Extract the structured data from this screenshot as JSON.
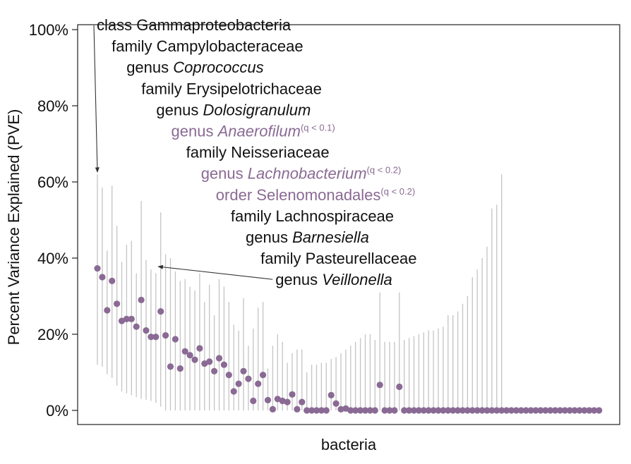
{
  "chart_data": {
    "type": "scatter",
    "xlabel": "bacteria",
    "ylabel": "Percent Variance Explained (PVE)",
    "ylim": [
      0,
      1
    ],
    "yticks": [
      {
        "value": 0,
        "label": "0%"
      },
      {
        "value": 0.2,
        "label": "20%"
      },
      {
        "value": 0.4,
        "label": "40%"
      },
      {
        "value": 0.6,
        "label": "60%"
      },
      {
        "value": 0.8,
        "label": "80%"
      },
      {
        "value": 1.0,
        "label": "100%"
      }
    ],
    "grid": false,
    "colors": {
      "point": "#8a6a94",
      "interval": "#c4c4c4",
      "highlight_text": "#8a6a94",
      "text": "#111111"
    },
    "points": [
      {
        "pve": 0.373,
        "lo": 0.12,
        "hi": 0.62
      },
      {
        "pve": 0.35,
        "lo": 0.115,
        "hi": 0.585
      },
      {
        "pve": 0.263,
        "lo": 0.095,
        "hi": 0.42
      },
      {
        "pve": 0.34,
        "lo": 0.085,
        "hi": 0.59
      },
      {
        "pve": 0.28,
        "lo": 0.065,
        "hi": 0.485
      },
      {
        "pve": 0.235,
        "lo": 0.05,
        "hi": 0.39
      },
      {
        "pve": 0.24,
        "lo": 0.045,
        "hi": 0.435
      },
      {
        "pve": 0.24,
        "lo": 0.04,
        "hi": 0.445
      },
      {
        "pve": 0.22,
        "lo": 0.035,
        "hi": 0.36
      },
      {
        "pve": 0.29,
        "lo": 0.03,
        "hi": 0.55
      },
      {
        "pve": 0.21,
        "lo": 0.028,
        "hi": 0.395
      },
      {
        "pve": 0.193,
        "lo": 0.025,
        "hi": 0.37
      },
      {
        "pve": 0.193,
        "lo": 0.02,
        "hi": 0.36
      },
      {
        "pve": 0.26,
        "lo": 0.01,
        "hi": 0.52
      },
      {
        "pve": 0.197,
        "lo": 0,
        "hi": 0.41
      },
      {
        "pve": 0.115,
        "lo": 0,
        "hi": 0.4
      },
      {
        "pve": 0.187,
        "lo": 0,
        "hi": 0.365
      },
      {
        "pve": 0.11,
        "lo": 0,
        "hi": 0.34
      },
      {
        "pve": 0.155,
        "lo": 0,
        "hi": 0.345
      },
      {
        "pve": 0.145,
        "lo": 0,
        "hi": 0.325
      },
      {
        "pve": 0.133,
        "lo": 0,
        "hi": 0.315
      },
      {
        "pve": 0.163,
        "lo": 0,
        "hi": 0.36
      },
      {
        "pve": 0.123,
        "lo": 0,
        "hi": 0.285
      },
      {
        "pve": 0.128,
        "lo": 0,
        "hi": 0.33
      },
      {
        "pve": 0.103,
        "lo": 0,
        "hi": 0.25
      },
      {
        "pve": 0.137,
        "lo": 0,
        "hi": 0.345
      },
      {
        "pve": 0.12,
        "lo": 0,
        "hi": 0.325
      },
      {
        "pve": 0.093,
        "lo": 0,
        "hi": 0.285
      },
      {
        "pve": 0.05,
        "lo": 0,
        "hi": 0.225
      },
      {
        "pve": 0.07,
        "lo": 0,
        "hi": 0.21
      },
      {
        "pve": 0.103,
        "lo": 0,
        "hi": 0.295
      },
      {
        "pve": 0.083,
        "lo": 0,
        "hi": 0.17
      },
      {
        "pve": 0.025,
        "lo": 0,
        "hi": 0.215
      },
      {
        "pve": 0.07,
        "lo": 0,
        "hi": 0.27
      },
      {
        "pve": 0.093,
        "lo": 0,
        "hi": 0.285
      },
      {
        "pve": 0.027,
        "lo": 0,
        "hi": 0.11
      },
      {
        "pve": 0.003,
        "lo": 0,
        "hi": 0.17
      },
      {
        "pve": 0.03,
        "lo": 0,
        "hi": 0.2
      },
      {
        "pve": 0.025,
        "lo": 0,
        "hi": 0.18
      },
      {
        "pve": 0.022,
        "lo": 0,
        "hi": 0.125
      },
      {
        "pve": 0.042,
        "lo": 0,
        "hi": 0.15
      },
      {
        "pve": 0.003,
        "lo": 0,
        "hi": 0.16
      },
      {
        "pve": 0.022,
        "lo": 0,
        "hi": 0.16
      },
      {
        "pve": 0,
        "lo": 0,
        "hi": 0.1
      },
      {
        "pve": 0,
        "lo": 0,
        "hi": 0.12
      },
      {
        "pve": 0,
        "lo": 0,
        "hi": 0.12
      },
      {
        "pve": 0,
        "lo": 0,
        "hi": 0.125
      },
      {
        "pve": 0,
        "lo": 0,
        "hi": 0.125
      },
      {
        "pve": 0.04,
        "lo": 0,
        "hi": 0.135
      },
      {
        "pve": 0.018,
        "lo": 0,
        "hi": 0.14
      },
      {
        "pve": 0.003,
        "lo": 0,
        "hi": 0.15
      },
      {
        "pve": 0.005,
        "lo": 0,
        "hi": 0.16
      },
      {
        "pve": 0,
        "lo": 0,
        "hi": 0.17
      },
      {
        "pve": 0,
        "lo": 0,
        "hi": 0.18
      },
      {
        "pve": 0,
        "lo": 0,
        "hi": 0.19
      },
      {
        "pve": 0,
        "lo": 0,
        "hi": 0.2
      },
      {
        "pve": 0,
        "lo": 0,
        "hi": 0.2
      },
      {
        "pve": 0,
        "lo": 0,
        "hi": 0.185
      },
      {
        "pve": 0.067,
        "lo": 0,
        "hi": 0.31
      },
      {
        "pve": 0,
        "lo": 0,
        "hi": 0.18
      },
      {
        "pve": 0,
        "lo": 0,
        "hi": 0.18
      },
      {
        "pve": 0,
        "lo": 0,
        "hi": 0.18
      },
      {
        "pve": 0.062,
        "lo": 0,
        "hi": 0.31
      },
      {
        "pve": 0,
        "lo": 0,
        "hi": 0.185
      },
      {
        "pve": 0,
        "lo": 0,
        "hi": 0.19
      },
      {
        "pve": 0,
        "lo": 0,
        "hi": 0.195
      },
      {
        "pve": 0,
        "lo": 0,
        "hi": 0.2
      },
      {
        "pve": 0,
        "lo": 0,
        "hi": 0.205
      },
      {
        "pve": 0,
        "lo": 0,
        "hi": 0.21
      },
      {
        "pve": 0,
        "lo": 0,
        "hi": 0.21
      },
      {
        "pve": 0,
        "lo": 0,
        "hi": 0.215
      },
      {
        "pve": 0,
        "lo": 0,
        "hi": 0.22
      },
      {
        "pve": 0,
        "lo": 0,
        "hi": 0.25
      },
      {
        "pve": 0,
        "lo": 0,
        "hi": 0.25
      },
      {
        "pve": 0,
        "lo": 0,
        "hi": 0.26
      },
      {
        "pve": 0,
        "lo": 0,
        "hi": 0.28
      },
      {
        "pve": 0,
        "lo": 0,
        "hi": 0.3
      },
      {
        "pve": 0,
        "lo": 0,
        "hi": 0.35
      },
      {
        "pve": 0,
        "lo": 0,
        "hi": 0.37
      },
      {
        "pve": 0,
        "lo": 0,
        "hi": 0.4
      },
      {
        "pve": 0,
        "lo": 0,
        "hi": 0.43
      },
      {
        "pve": 0,
        "lo": 0,
        "hi": 0.53
      },
      {
        "pve": 0,
        "lo": 0,
        "hi": 0.54
      },
      {
        "pve": 0,
        "lo": 0,
        "hi": 0.62
      },
      {
        "pve": 0
      },
      {
        "pve": 0
      },
      {
        "pve": 0
      },
      {
        "pve": 0
      },
      {
        "pve": 0
      },
      {
        "pve": 0
      },
      {
        "pve": 0
      },
      {
        "pve": 0
      },
      {
        "pve": 0
      },
      {
        "pve": 0
      },
      {
        "pve": 0
      },
      {
        "pve": 0
      },
      {
        "pve": 0
      },
      {
        "pve": 0
      },
      {
        "pve": 0
      },
      {
        "pve": 0
      },
      {
        "pve": 0
      },
      {
        "pve": 0
      },
      {
        "pve": 0
      },
      {
        "pve": 0
      }
    ],
    "annotations": [
      {
        "rank": "class",
        "name": "Gammaproteobacteria",
        "italic": false,
        "highlight": false,
        "q": ""
      },
      {
        "rank": "family",
        "name": "Campylobacteraceae",
        "italic": false,
        "highlight": false,
        "q": ""
      },
      {
        "rank": "genus",
        "name": "Coprococcus",
        "italic": true,
        "highlight": false,
        "q": ""
      },
      {
        "rank": "family",
        "name": "Erysipelotrichaceae",
        "italic": false,
        "highlight": false,
        "q": ""
      },
      {
        "rank": "genus",
        "name": "Dolosigranulum",
        "italic": true,
        "highlight": false,
        "q": ""
      },
      {
        "rank": "genus",
        "name": "Anaerofilum",
        "italic": true,
        "highlight": true,
        "q": "(q < 0.1)"
      },
      {
        "rank": "family",
        "name": "Neisseriaceae",
        "italic": false,
        "highlight": false,
        "q": ""
      },
      {
        "rank": "genus",
        "name": "Lachnobacterium",
        "italic": true,
        "highlight": true,
        "q": "(q < 0.2)"
      },
      {
        "rank": "order",
        "name": "Selenomonadales",
        "italic": false,
        "highlight": true,
        "q": "(q < 0.2)"
      },
      {
        "rank": "family",
        "name": "Lachnospiraceae",
        "italic": false,
        "highlight": false,
        "q": ""
      },
      {
        "rank": "genus",
        "name": "Barnesiella",
        "italic": true,
        "highlight": false,
        "q": ""
      },
      {
        "rank": "family",
        "name": "Pasteurellaceae",
        "italic": false,
        "highlight": false,
        "q": ""
      },
      {
        "rank": "genus",
        "name": "Veillonella",
        "italic": true,
        "highlight": false,
        "q": ""
      }
    ],
    "arrows": [
      {
        "from_annotation": 0,
        "to_point": 0
      },
      {
        "from_annotation": 12,
        "to_point": 13
      }
    ]
  }
}
